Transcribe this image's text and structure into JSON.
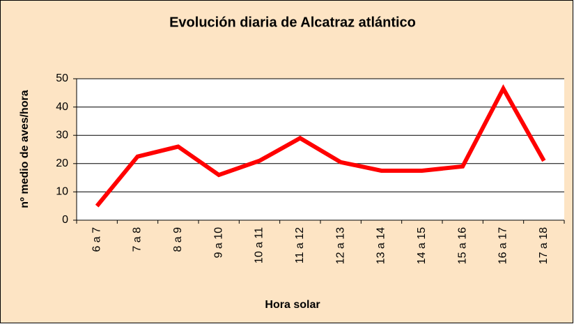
{
  "chart_data": {
    "type": "line",
    "title": "Evolución diaria de Alcatraz atlántico",
    "x_label": "Hora solar",
    "y_label": "nº medio de aves/hora",
    "categories": [
      "6 a 7",
      "7 a 8",
      "8 a 9",
      "9 a 10",
      "10 a 11",
      "11 a 12",
      "12 a 13",
      "13 a 14",
      "14 a 15",
      "15 a 16",
      "16 a 17",
      "17 a 18"
    ],
    "series": [
      {
        "color": "#ff0000",
        "values": [
          5,
          22.5,
          26,
          16,
          21,
          29,
          20.5,
          17.5,
          17.5,
          19,
          46.5,
          21
        ]
      }
    ],
    "ylim": [
      0,
      50
    ],
    "yticks": [
      0,
      10,
      20,
      30,
      40,
      50
    ],
    "grid": true
  }
}
